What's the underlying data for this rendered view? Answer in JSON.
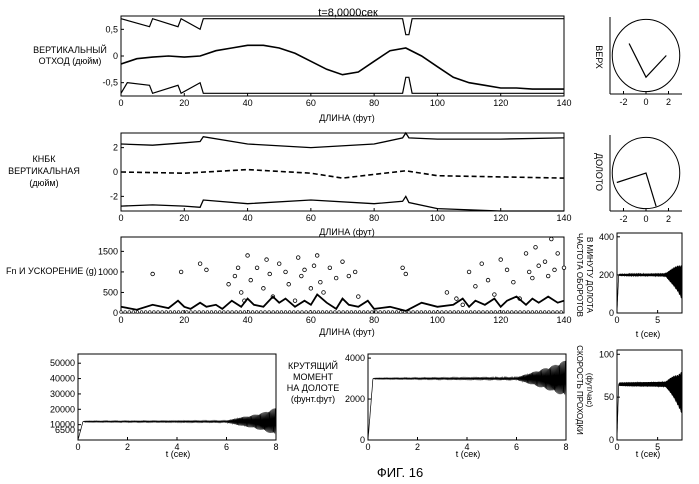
{
  "time_label": "t=8,0000сек",
  "figure_caption": "ФИГ. 16",
  "chart_data": [
    {
      "id": "vertical-offset",
      "type": "line",
      "ylabel_lines": [
        "ВЕРТИКАЛЬНЫЙ",
        "ОТХОД (дюйм)"
      ],
      "xlabel": "ДЛИНА (фут)",
      "xlim": [
        0,
        140
      ],
      "ylim": [
        -0.75,
        0.75
      ],
      "xticks": [
        0,
        20,
        40,
        60,
        80,
        100,
        120,
        140
      ],
      "yticks": [
        0.5,
        0,
        -0.5
      ],
      "ytick_labels": [
        "0,5",
        "0",
        "-0,5"
      ],
      "grid": false,
      "series": [
        {
          "x": [
            0,
            9,
            10,
            18,
            19,
            25,
            26,
            40,
            89,
            90,
            91,
            92,
            140
          ],
          "y": [
            0.7,
            0.55,
            0.7,
            0.55,
            0.7,
            0.5,
            0.7,
            0.7,
            0.7,
            0.4,
            0.4,
            0.7,
            0.7
          ]
        },
        {
          "x": [
            0,
            5,
            10,
            15,
            20,
            25,
            30,
            35,
            40,
            45,
            50,
            55,
            60,
            65,
            70,
            75,
            80,
            85,
            90,
            95,
            100,
            105,
            110,
            115,
            120,
            125,
            130,
            135,
            140
          ],
          "y": [
            -0.15,
            -0.05,
            -0.02,
            0.0,
            -0.02,
            0.0,
            0.1,
            0.15,
            0.2,
            0.2,
            0.15,
            0.05,
            -0.1,
            -0.25,
            -0.35,
            -0.3,
            -0.1,
            0.1,
            0.15,
            0.0,
            -0.2,
            -0.4,
            -0.5,
            -0.55,
            -0.6,
            -0.6,
            -0.62,
            -0.62,
            -0.62
          ]
        },
        {
          "x": [
            0,
            2,
            9,
            10,
            18,
            19,
            25,
            26,
            40,
            89,
            90,
            91,
            92,
            140
          ],
          "y": [
            -0.7,
            -0.5,
            -0.55,
            -0.7,
            -0.55,
            -0.7,
            -0.5,
            -0.7,
            -0.7,
            -0.7,
            -0.4,
            -0.4,
            -0.7,
            -0.7
          ]
        }
      ]
    },
    {
      "id": "bha-vertical",
      "type": "line",
      "ylabel_lines": [
        "КНБК",
        "ВЕРТИКАЛЬНАЯ",
        "(дюйм)"
      ],
      "xlabel": "ДЛИНА (фут)",
      "xlim": [
        0,
        140
      ],
      "ylim": [
        -3.2,
        3.2
      ],
      "xticks": [
        0,
        20,
        40,
        60,
        80,
        100,
        120,
        140
      ],
      "yticks": [
        2,
        0,
        -2
      ],
      "ytick_labels": [
        "2",
        "0",
        "-2"
      ],
      "grid": false,
      "series": [
        {
          "style": "solid",
          "x": [
            0,
            10,
            20,
            25,
            26,
            40,
            60,
            80,
            89,
            90,
            91,
            100,
            120,
            140
          ],
          "y": [
            2.3,
            2.2,
            2.4,
            2.5,
            2.9,
            2.3,
            2.0,
            2.3,
            2.8,
            3.2,
            2.8,
            2.7,
            2.7,
            2.8
          ]
        },
        {
          "style": "dashed",
          "x": [
            0,
            20,
            40,
            60,
            70,
            80,
            90,
            100,
            120,
            140
          ],
          "y": [
            0.0,
            -0.1,
            0.2,
            -0.1,
            -0.5,
            -0.2,
            0.1,
            -0.3,
            -0.4,
            -0.5
          ]
        },
        {
          "style": "solid",
          "x": [
            0,
            10,
            20,
            25,
            26,
            40,
            60,
            80,
            89,
            90,
            91,
            100,
            120,
            140
          ],
          "y": [
            -2.8,
            -2.7,
            -2.8,
            -2.9,
            -2.3,
            -2.6,
            -2.3,
            -2.6,
            -2.4,
            -2.0,
            -2.5,
            -3.0,
            -3.2,
            -3.2
          ]
        }
      ]
    },
    {
      "id": "fn-acceleration",
      "type": "scatter",
      "ylabel": "Fn И УСКОРЕНИЕ (g)",
      "xlabel": "ДЛИНА (фут)",
      "xlim": [
        0,
        140
      ],
      "ylim": [
        0,
        1850
      ],
      "xticks": [
        0,
        20,
        40,
        60,
        80,
        100,
        120,
        140
      ],
      "yticks": [
        0,
        500,
        1000,
        1500,
        2000
      ],
      "ytick_labels": [
        "0",
        "500",
        "1000",
        "1500",
        "2000"
      ],
      "grid": false,
      "points": {
        "x": [
          10,
          19,
          25,
          27,
          34,
          36,
          37,
          38,
          39,
          40,
          41,
          43,
          45,
          46,
          47,
          48,
          50,
          52,
          53,
          55,
          56,
          57,
          58,
          60,
          61,
          62,
          63,
          64,
          66,
          68,
          70,
          72,
          74,
          75,
          89,
          90,
          103,
          106,
          108,
          110,
          112,
          114,
          116,
          118,
          120,
          122,
          124,
          126,
          128,
          129,
          130,
          131,
          132,
          134,
          135,
          136,
          137,
          138,
          140
        ],
        "y": [
          950,
          1000,
          1200,
          1050,
          700,
          900,
          1100,
          500,
          300,
          1400,
          800,
          1100,
          600,
          1300,
          950,
          400,
          1200,
          1000,
          700,
          300,
          1350,
          900,
          1050,
          600,
          1150,
          1400,
          750,
          500,
          1100,
          850,
          1250,
          900,
          1000,
          400,
          1100,
          950,
          500,
          350,
          200,
          1000,
          650,
          1200,
          800,
          450,
          1300,
          1050,
          750,
          350,
          1450,
          1000,
          850,
          1600,
          1150,
          1250,
          900,
          1800,
          1050,
          1450,
          1100
        ]
      },
      "line": {
        "x": [
          0,
          5,
          10,
          15,
          18,
          20,
          22,
          25,
          27,
          30,
          32,
          35,
          38,
          40,
          42,
          45,
          48,
          50,
          52,
          55,
          58,
          60,
          62,
          65,
          68,
          70,
          72,
          75,
          78,
          80,
          85,
          90,
          95,
          100,
          105,
          108,
          110,
          112,
          115,
          118,
          120,
          122,
          125,
          128,
          130,
          132,
          135,
          138,
          140
        ],
        "y": [
          150,
          80,
          200,
          120,
          300,
          150,
          100,
          250,
          150,
          200,
          100,
          300,
          150,
          350,
          200,
          150,
          400,
          250,
          350,
          150,
          300,
          200,
          450,
          250,
          100,
          350,
          200,
          150,
          300,
          100,
          150,
          50,
          250,
          150,
          200,
          350,
          150,
          300,
          200,
          350,
          150,
          300,
          400,
          200,
          350,
          250,
          400,
          250,
          300
        ]
      }
    },
    {
      "id": "torque",
      "type": "line",
      "xlabel": "t (сек)",
      "xlim": [
        0,
        8
      ],
      "ylim": [
        0,
        56000
      ],
      "xticks": [
        0,
        2,
        4,
        6,
        8
      ],
      "yticks": [
        6500,
        10000,
        20000,
        30000,
        40000,
        50000
      ],
      "ytick_labels": [
        "6500",
        "10000",
        "20000",
        "30000",
        "40000",
        "50000"
      ],
      "grid": false,
      "t": [
        0,
        0.2,
        0.3,
        6.0,
        6.5,
        7.0,
        7.5,
        8.0
      ],
      "mean": [
        0,
        12000,
        12000,
        12000,
        12000,
        12000,
        12000,
        12000
      ],
      "amp": [
        0,
        0,
        400,
        600,
        2500,
        4000,
        6000,
        9000
      ]
    },
    {
      "id": "bit-torque",
      "type": "line",
      "title_lines": [
        "КРУТЯЩИЙ",
        "МОМЕНТ",
        "НА ДОЛОТЕ",
        "(фунт.фут)"
      ],
      "xlabel": "t (сек)",
      "xlim": [
        0,
        8
      ],
      "ylim": [
        0,
        4200
      ],
      "xticks": [
        0,
        2,
        4,
        6,
        8
      ],
      "yticks": [
        0,
        2000,
        4000
      ],
      "ytick_labels": [
        "0",
        "2000",
        "4000"
      ],
      "grid": false,
      "t": [
        0,
        0.2,
        0.3,
        6.0,
        6.5,
        7.0,
        7.5,
        8.0
      ],
      "mean": [
        0,
        3000,
        3000,
        3000,
        3000,
        3000,
        3000,
        3000
      ],
      "amp": [
        0,
        0,
        30,
        60,
        250,
        450,
        650,
        900
      ]
    },
    {
      "id": "rpm",
      "type": "line",
      "ylabel_lines": [
        "ЧАСТОТА ОБОРОТОВ",
        "В МИНУТУ ДОЛОТА"
      ],
      "xlabel": "t (сек)",
      "xlim": [
        0,
        8
      ],
      "ylim": [
        0,
        420
      ],
      "xticks": [
        0,
        5
      ],
      "yticks": [
        0,
        200,
        400
      ],
      "ytick_labels": [
        "0",
        "200",
        "400"
      ],
      "grid": false,
      "t": [
        0,
        0.2,
        0.3,
        6.0,
        6.5,
        7.0,
        7.5,
        8.0
      ],
      "mean": [
        0,
        200,
        200,
        200,
        195,
        190,
        180,
        160
      ],
      "amp": [
        0,
        0,
        5,
        8,
        30,
        50,
        70,
        90
      ]
    },
    {
      "id": "rop",
      "type": "line",
      "ylabel_lines": [
        "СКОРОСТЬ ПРОХОДКИ",
        "(фут/час)"
      ],
      "xlabel": "t (сек)",
      "xlim": [
        0,
        8
      ],
      "ylim": [
        0,
        105
      ],
      "xticks": [
        0,
        5
      ],
      "yticks": [
        0,
        50,
        100
      ],
      "ytick_labels": [
        "0",
        "50",
        "100"
      ],
      "grid": false,
      "t": [
        0,
        0.2,
        0.3,
        6.0,
        6.5,
        7.0,
        7.5,
        8.0
      ],
      "mean": [
        0,
        65,
        65,
        65,
        64,
        62,
        58,
        55
      ],
      "amp": [
        0,
        0,
        2,
        3,
        8,
        13,
        18,
        25
      ]
    },
    {
      "id": "upper-polar",
      "type": "line",
      "ylabel": "ВЕРХ",
      "xlim": [
        -3.2,
        3.2
      ],
      "ylim": [
        -3.2,
        3.2
      ],
      "xticks": [
        -2,
        0,
        2
      ],
      "xtick_labels": [
        "-2",
        "0",
        "2"
      ],
      "grid": false,
      "circle_radius": 3.0,
      "path": {
        "x": [
          -1.5,
          0.0,
          1.8
        ],
        "y": [
          1.0,
          -1.8,
          0.0
        ]
      }
    },
    {
      "id": "bit-polar",
      "type": "line",
      "ylabel": "ДОЛОТО",
      "xlim": [
        -3.2,
        3.2
      ],
      "ylim": [
        -3.2,
        3.2
      ],
      "xticks": [
        -2,
        0,
        2
      ],
      "xtick_labels": [
        "-2",
        "0",
        "2"
      ],
      "grid": false,
      "circle_radius": 3.0,
      "path": {
        "x": [
          -2.6,
          0.0,
          0.9
        ],
        "y": [
          -0.8,
          0.0,
          -2.8
        ]
      }
    }
  ]
}
